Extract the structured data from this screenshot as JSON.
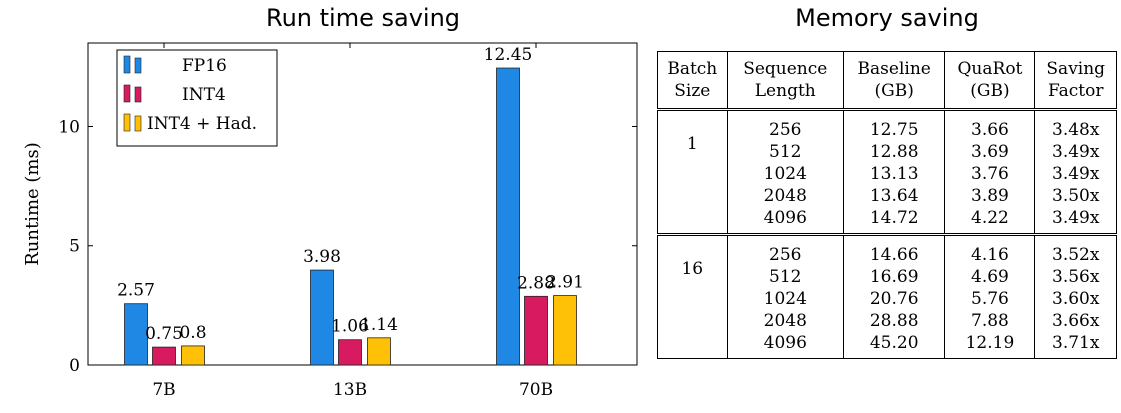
{
  "titles": {
    "left": "Run time saving",
    "right": "Memory saving"
  },
  "chart_data": {
    "type": "bar",
    "ylabel": "Runtime (ms)",
    "categories": [
      "7B",
      "13B",
      "70B"
    ],
    "ylim": [
      0,
      13.5
    ],
    "yticks": [
      0,
      5,
      10
    ],
    "legend_position": "top-left",
    "series": [
      {
        "name": "FP16",
        "color": "#1f88e5",
        "values": [
          2.57,
          3.98,
          12.45
        ],
        "labels": [
          "2.57",
          "3.98",
          "12.45"
        ]
      },
      {
        "name": "INT4",
        "color": "#d81b60",
        "values": [
          0.75,
          1.06,
          2.88
        ],
        "labels": [
          "0.75",
          "1.06",
          "2.88"
        ]
      },
      {
        "name": "INT4 + Had.",
        "color": "#ffc107",
        "values": [
          0.8,
          1.14,
          2.91
        ],
        "labels": [
          "0.8",
          "1.14",
          "2.91"
        ]
      }
    ]
  },
  "table": {
    "headers": [
      [
        "Batch",
        "Size"
      ],
      [
        "Sequence",
        "Length"
      ],
      [
        "Baseline",
        "(GB)"
      ],
      [
        "QuaRot",
        "(GB)"
      ],
      [
        "Saving",
        "Factor"
      ]
    ],
    "groups": [
      {
        "batch": "1",
        "rows": [
          [
            "256",
            "12.75",
            "3.66",
            "3.48x"
          ],
          [
            "512",
            "12.88",
            "3.69",
            "3.49x"
          ],
          [
            "1024",
            "13.13",
            "3.76",
            "3.49x"
          ],
          [
            "2048",
            "13.64",
            "3.89",
            "3.50x"
          ],
          [
            "4096",
            "14.72",
            "4.22",
            "3.49x"
          ]
        ]
      },
      {
        "batch": "16",
        "rows": [
          [
            "256",
            "14.66",
            "4.16",
            "3.52x"
          ],
          [
            "512",
            "16.69",
            "4.69",
            "3.56x"
          ],
          [
            "1024",
            "20.76",
            "5.76",
            "3.60x"
          ],
          [
            "2048",
            "28.88",
            "7.88",
            "3.66x"
          ],
          [
            "4096",
            "45.20",
            "12.19",
            "3.71x"
          ]
        ]
      }
    ]
  }
}
